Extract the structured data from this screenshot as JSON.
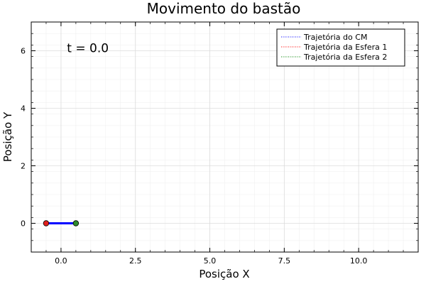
{
  "chart_data": {
    "type": "line",
    "title": "Movimento do bastão",
    "xlabel": "Posição X",
    "ylabel": "Posição Y",
    "xlim": [
      -1.0,
      12.0
    ],
    "ylim": [
      -1.0,
      7.0
    ],
    "xticks": [
      0.0,
      2.5,
      5.0,
      7.5,
      10.0
    ],
    "xtick_labels": [
      "0.0",
      "2.5",
      "5.0",
      "7.5",
      "10.0"
    ],
    "yticks": [
      0,
      2,
      4,
      6
    ],
    "ytick_labels": [
      "0",
      "2",
      "4",
      "6"
    ],
    "grid": true,
    "legend_position": "top-right",
    "annotation": {
      "text": "t = 0.0",
      "x": 0.2,
      "y": 5.95
    },
    "series": [
      {
        "name": "Trajetória do CM",
        "color": "#0000ff",
        "style": "dotted",
        "x": [
          0.0
        ],
        "y": [
          0.0
        ]
      },
      {
        "name": "Trajetória da Esfera 1",
        "color": "#ff0000",
        "style": "dotted",
        "x": [
          -0.5
        ],
        "y": [
          0.0
        ]
      },
      {
        "name": "Trajetória da Esfera 2",
        "color": "#008000",
        "style": "dotted",
        "x": [
          0.5
        ],
        "y": [
          0.0
        ]
      }
    ],
    "rod": {
      "color": "#0000ff",
      "x": [
        -0.5,
        0.5
      ],
      "y": [
        0.0,
        0.0
      ]
    },
    "spheres": [
      {
        "color": "#e0201c",
        "x": -0.5,
        "y": 0.0
      },
      {
        "color": "#2e8b2e",
        "x": 0.5,
        "y": 0.0
      }
    ]
  }
}
